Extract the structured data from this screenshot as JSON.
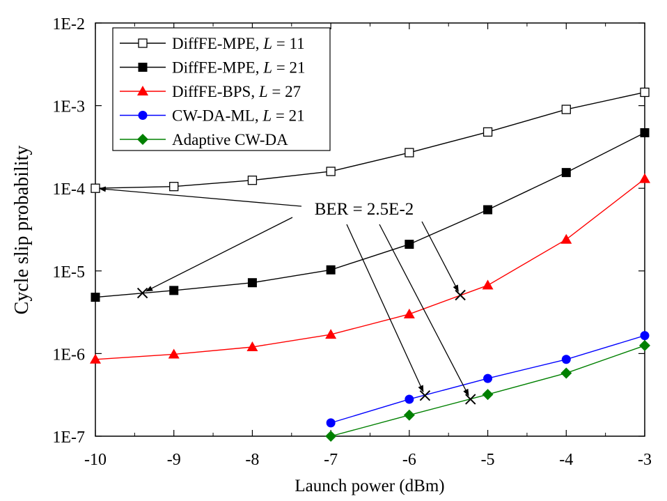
{
  "chart_data": {
    "type": "line",
    "xlabel": "Launch power (dBm)",
    "ylabel": "Cycle slip probability",
    "xlim": [
      -10,
      -3
    ],
    "ylim": [
      1e-07,
      0.01
    ],
    "yscale": "log",
    "grid": false,
    "legend_placement": "top-left",
    "x_ticks": [
      "-10",
      "-9",
      "-8",
      "-7",
      "-6",
      "-5",
      "-4",
      "-3"
    ],
    "y_ticks": [
      "1E-7",
      "1E-6",
      "1E-5",
      "1E-4",
      "1E-3",
      "1E-2"
    ],
    "series": [
      {
        "name_prefix": "DiffFE-MPE, ",
        "name_var": "L",
        "name_suffix": " = 11",
        "color": "#000000",
        "marker": "square-open",
        "x": [
          -10,
          -9,
          -8,
          -7,
          -6,
          -5,
          -4,
          -3
        ],
        "y": [
          0.0001,
          0.000105,
          0.000125,
          0.00016,
          0.00027,
          0.00048,
          0.0009,
          0.00145
        ]
      },
      {
        "name_prefix": "DiffFE-MPE, ",
        "name_var": "L",
        "name_suffix": " = 21",
        "color": "#000000",
        "marker": "square-filled",
        "x": [
          -10,
          -9,
          -8,
          -7,
          -6,
          -5,
          -4,
          -3
        ],
        "y": [
          4.8e-06,
          5.8e-06,
          7.2e-06,
          1.03e-05,
          2.1e-05,
          5.5e-05,
          0.000155,
          0.00047
        ]
      },
      {
        "name_prefix": "DiffFE-BPS, ",
        "name_var": "L",
        "name_suffix": " = 27",
        "color": "#ff0000",
        "marker": "triangle",
        "x": [
          -10,
          -9,
          -8,
          -7,
          -6,
          -5,
          -4,
          -3
        ],
        "y": [
          8.5e-07,
          9.8e-07,
          1.2e-06,
          1.7e-06,
          3e-06,
          6.7e-06,
          2.4e-05,
          0.00013
        ]
      },
      {
        "name_prefix": "CW-DA-ML, ",
        "name_var": "L",
        "name_suffix": " = 21",
        "color": "#0000ff",
        "marker": "circle",
        "x": [
          -7,
          -6,
          -5,
          -4,
          -3
        ],
        "y": [
          1.45e-07,
          2.8e-07,
          5e-07,
          8.5e-07,
          1.65e-06
        ]
      },
      {
        "name_prefix": "Adaptive CW-DA",
        "name_var": "",
        "name_suffix": "",
        "color": "#008000",
        "marker": "diamond",
        "x": [
          -7,
          -6,
          -5,
          -4,
          -3
        ],
        "y": [
          1e-07,
          1.8e-07,
          3.2e-07,
          5.8e-07,
          1.25e-06
        ]
      }
    ],
    "annotation": {
      "text": "BER = 2.5E-2",
      "cross_points": [
        {
          "x": -9.4,
          "y": 5.4e-06
        },
        {
          "x": -5.35,
          "y": 5.1e-06
        },
        {
          "x": -5.8,
          "y": 3.1e-07
        },
        {
          "x": -5.22,
          "y": 2.8e-07
        }
      ],
      "arrow_targets": [
        {
          "x": -10,
          "y": 0.0001
        },
        {
          "x": -9.4,
          "y": 5.4e-06
        },
        {
          "x": -5.35,
          "y": 5.1e-06
        },
        {
          "x": -5.8,
          "y": 3.1e-07
        },
        {
          "x": -5.22,
          "y": 2.8e-07
        }
      ]
    }
  }
}
